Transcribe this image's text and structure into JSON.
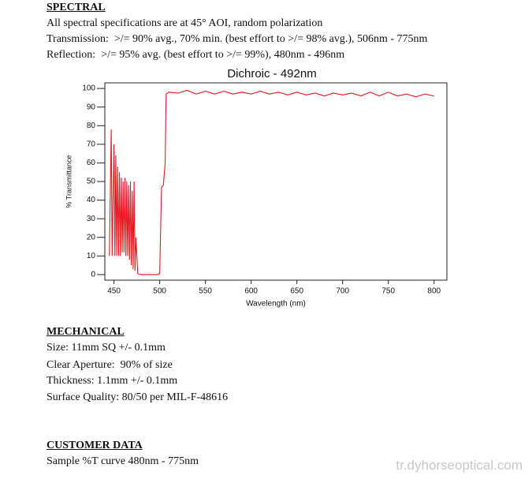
{
  "spectral": {
    "heading": "SPECTRAL",
    "lines": [
      "All spectral specifications are at 45° AOI, random polarization",
      "Transmission:  >/= 90% avg., 70% min. (best effort to >/= 98% avg.), 506nm - 775nm",
      "Reflection:  >/= 95% avg. (best effort to >/= 99%), 480nm - 496nm"
    ]
  },
  "chart_data": {
    "type": "line",
    "title": "Dichroic - 492nm",
    "x_label": "Wavelength (nm)",
    "y_label": "% Transmittance",
    "x": [
      445,
      447,
      448,
      450,
      451,
      452,
      453,
      454,
      455,
      456,
      457,
      458,
      459,
      460,
      461,
      462,
      463,
      464,
      465,
      466,
      467,
      468,
      469,
      470,
      471,
      472,
      473,
      474,
      476,
      480,
      490,
      498,
      500,
      502,
      504,
      506,
      507,
      510,
      520,
      530,
      540,
      550,
      560,
      570,
      580,
      590,
      600,
      610,
      620,
      630,
      640,
      650,
      660,
      670,
      680,
      690,
      700,
      710,
      720,
      730,
      740,
      750,
      760,
      770,
      780,
      790,
      800
    ],
    "series": [
      {
        "name": "% Transmittance",
        "color": "#e8141e",
        "values": [
          10,
          78,
          10,
          70,
          10,
          64,
          10,
          58,
          10,
          55,
          10,
          52,
          12,
          50,
          12,
          52,
          10,
          50,
          10,
          48,
          8,
          50,
          5,
          45,
          3,
          50,
          2,
          20,
          0.5,
          0,
          0,
          0,
          0.5,
          47,
          48,
          60,
          97,
          98,
          97.5,
          99,
          97,
          98.5,
          97,
          98.5,
          97,
          98,
          97,
          98.5,
          97,
          98,
          96.5,
          98,
          96.5,
          97.5,
          96,
          97.5,
          96.5,
          97.5,
          96,
          98,
          96,
          98,
          96,
          97,
          95.5,
          97,
          96
        ]
      }
    ],
    "xlim": [
      440,
      814
    ],
    "ylim": [
      -3,
      103
    ],
    "xticks": [
      450,
      500,
      550,
      600,
      650,
      700,
      750,
      800
    ],
    "yticks": [
      0,
      10,
      20,
      30,
      40,
      50,
      60,
      70,
      80,
      90,
      100
    ],
    "grid": false
  },
  "mechanical": {
    "heading": "MECHANICAL",
    "lines": [
      "Size: 11mm SQ +/- 0.1mm",
      "Clear Aperture:  90% of size",
      "Thickness: 1.1mm +/- 0.1mm",
      "Surface Quality: 80/50 per MIL-F-48616"
    ]
  },
  "customer_data": {
    "heading": "CUSTOMER DATA",
    "lines": [
      "Sample %T curve 480nm - 775nm"
    ]
  },
  "watermark": "tr.dyhorseoptical.com"
}
